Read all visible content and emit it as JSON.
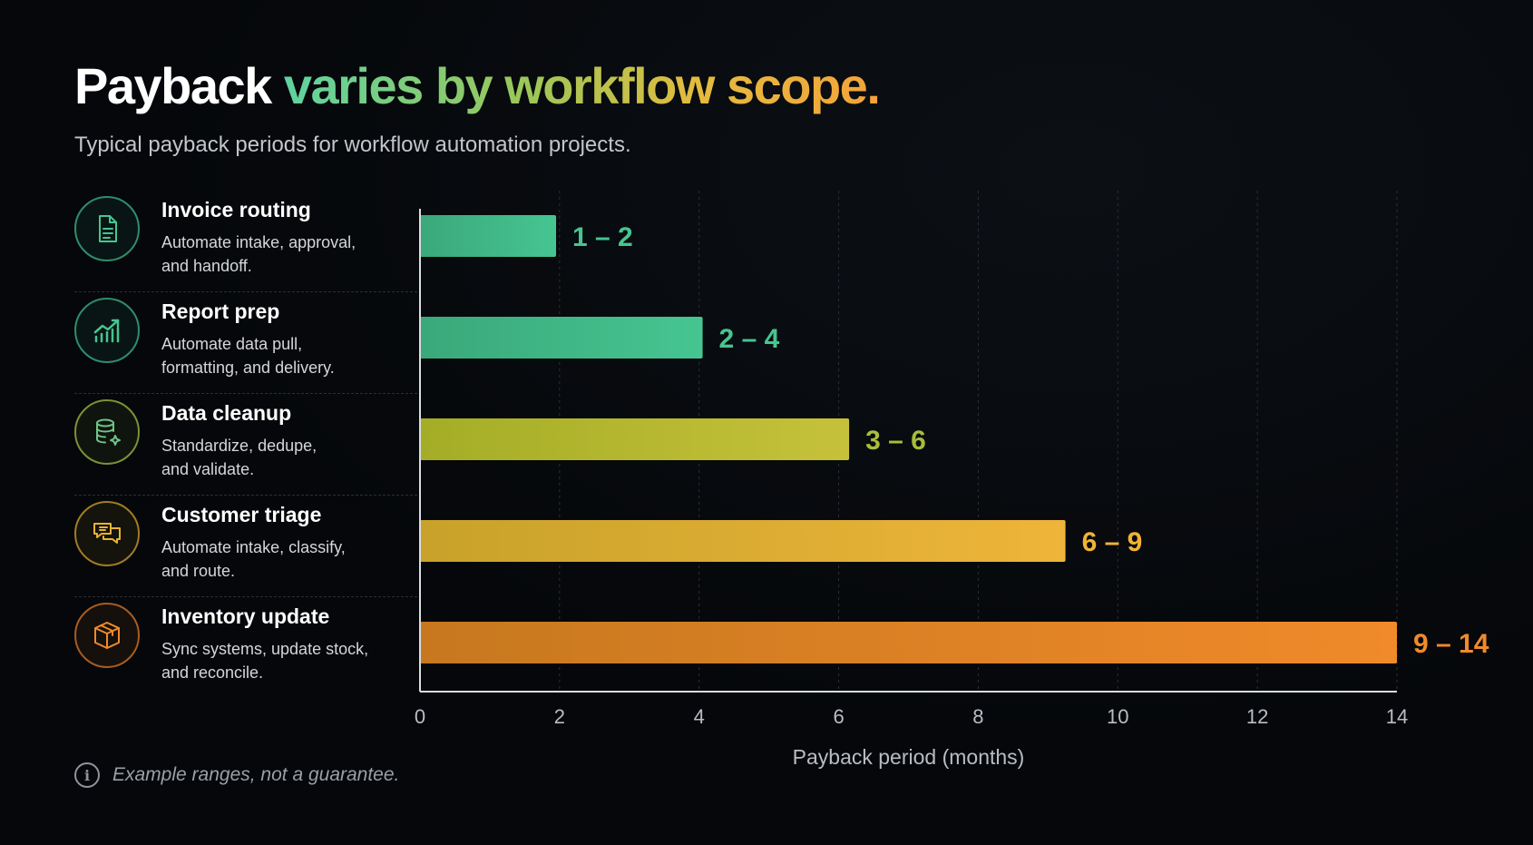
{
  "title": {
    "plain": "Payback",
    "highlight": "varies by workflow scope."
  },
  "subtitle": "Typical payback periods for workflow automation projects.",
  "workflows": [
    {
      "title": "Invoice routing",
      "desc_line1": "Automate intake, approval,",
      "desc_line2": "and handoff.",
      "icon": "document-icon",
      "color": "#3fbf8a"
    },
    {
      "title": "Report prep",
      "desc_line1": "Automate data pull,",
      "desc_line2": "formatting, and delivery.",
      "icon": "bar-chart-trend-icon",
      "color": "#3fbf8a"
    },
    {
      "title": "Data cleanup",
      "desc_line1": "Standardize, dedupe,",
      "desc_line2": "and validate.",
      "icon": "database-sparkle-icon",
      "color": "#a7c34a"
    },
    {
      "title": "Customer triage",
      "desc_line1": "Automate intake, classify,",
      "desc_line2": "and route.",
      "icon": "chat-bubbles-icon",
      "color": "#e8b330"
    },
    {
      "title": "Inventory update",
      "desc_line1": "Sync systems, update stock,",
      "desc_line2": "and reconcile.",
      "icon": "box-icon",
      "color": "#f08a2a"
    }
  ],
  "chart_data": {
    "type": "bar",
    "orientation": "horizontal",
    "categories": [
      "Invoice routing",
      "Report prep",
      "Data cleanup",
      "Customer triage",
      "Inventory update"
    ],
    "series": [
      {
        "values": [
          1.95,
          4.05,
          6.15,
          9.25,
          14.0
        ]
      }
    ],
    "data_labels": [
      "1 – 2",
      "2 – 4",
      "3 – 6",
      "6 – 9",
      "9 – 14"
    ],
    "bar_colors": [
      [
        "#3aa87a",
        "#46c591"
      ],
      [
        "#3aa87a",
        "#46c591"
      ],
      [
        "#a4ad26",
        "#c6c13a"
      ],
      [
        "#c8a22a",
        "#eeb53a"
      ],
      [
        "#c7781f",
        "#f08a2a"
      ]
    ],
    "label_colors": [
      "#46c591",
      "#46c591",
      "#a8bd3a",
      "#f0b433",
      "#f08a2a"
    ],
    "xlim": [
      0,
      14
    ],
    "xticks": [
      "0",
      "2",
      "4",
      "6",
      "8",
      "10",
      "12",
      "14"
    ],
    "xlabel": "Payback period (months)",
    "grid": true
  },
  "footnote": "Example ranges, not a guarantee."
}
